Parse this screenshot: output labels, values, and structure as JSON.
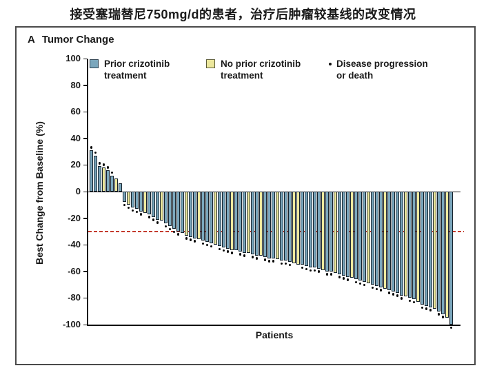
{
  "page": {
    "title": "接受塞瑞替尼750mg/d的患者，治疗后肿瘤较基线的改变情况"
  },
  "panel": {
    "letter": "A",
    "title": "Tumor Change"
  },
  "legend": {
    "prior": {
      "label": "Prior crizotinib treatment",
      "swatch_color": "#7aa6bc",
      "swatch_border": "#2b3f4e"
    },
    "no_prior": {
      "label": "No prior crizotinib treatment",
      "swatch_color": "#ece79c",
      "swatch_border": "#5c5c38"
    },
    "progression": {
      "label": "Disease progression or death",
      "marker": "black-dot",
      "marker_color": "#111111"
    }
  },
  "chart_data": {
    "type": "bar",
    "subtype": "waterfall",
    "title": "Tumor Change",
    "xlabel": "Patients",
    "ylabel": "Best Change from Baseline (%)",
    "ylim": [
      -100,
      100
    ],
    "yticks": [
      100,
      80,
      60,
      40,
      20,
      0,
      -20,
      -40,
      -60,
      -80,
      -100
    ],
    "grid": false,
    "legend_position": "top",
    "reference_line": {
      "y": -30,
      "color": "#c43a2d",
      "style": "dashed",
      "meaning": "-30% response threshold"
    },
    "series_colors": {
      "prior": "#7aa6bc",
      "no_prior": "#ece79c"
    },
    "bar_border_color": "#17242e",
    "dot_color": "#0a0a0a",
    "bars": [
      {
        "value": 31,
        "group": "prior",
        "dot": true
      },
      {
        "value": 27,
        "group": "prior",
        "dot": true
      },
      {
        "value": 19,
        "group": "prior",
        "dot": true
      },
      {
        "value": 18,
        "group": "no_prior",
        "dot": true
      },
      {
        "value": 16,
        "group": "prior",
        "dot": true
      },
      {
        "value": 12,
        "group": "prior",
        "dot": true
      },
      {
        "value": 10,
        "group": "no_prior",
        "dot": false
      },
      {
        "value": 6,
        "group": "prior",
        "dot": false
      },
      {
        "value": -8,
        "group": "prior",
        "dot": true
      },
      {
        "value": -10,
        "group": "no_prior",
        "dot": true
      },
      {
        "value": -12,
        "group": "prior",
        "dot": true
      },
      {
        "value": -13,
        "group": "prior",
        "dot": true
      },
      {
        "value": -15,
        "group": "prior",
        "dot": true
      },
      {
        "value": -16,
        "group": "no_prior",
        "dot": false
      },
      {
        "value": -17,
        "group": "prior",
        "dot": true
      },
      {
        "value": -19,
        "group": "prior",
        "dot": true
      },
      {
        "value": -21,
        "group": "prior",
        "dot": true
      },
      {
        "value": -22,
        "group": "no_prior",
        "dot": false
      },
      {
        "value": -24,
        "group": "prior",
        "dot": true
      },
      {
        "value": -26,
        "group": "prior",
        "dot": true
      },
      {
        "value": -28,
        "group": "prior",
        "dot": true
      },
      {
        "value": -30,
        "group": "prior",
        "dot": true
      },
      {
        "value": -31,
        "group": "prior",
        "dot": false
      },
      {
        "value": -33,
        "group": "no_prior",
        "dot": true
      },
      {
        "value": -34,
        "group": "prior",
        "dot": true
      },
      {
        "value": -35,
        "group": "prior",
        "dot": true
      },
      {
        "value": -36,
        "group": "no_prior",
        "dot": false
      },
      {
        "value": -37,
        "group": "prior",
        "dot": true
      },
      {
        "value": -38,
        "group": "prior",
        "dot": true
      },
      {
        "value": -39,
        "group": "prior",
        "dot": true
      },
      {
        "value": -40,
        "group": "no_prior",
        "dot": false
      },
      {
        "value": -41,
        "group": "prior",
        "dot": true
      },
      {
        "value": -42,
        "group": "prior",
        "dot": true
      },
      {
        "value": -43,
        "group": "prior",
        "dot": true
      },
      {
        "value": -44,
        "group": "no_prior",
        "dot": true
      },
      {
        "value": -44,
        "group": "prior",
        "dot": false
      },
      {
        "value": -45,
        "group": "prior",
        "dot": true
      },
      {
        "value": -46,
        "group": "prior",
        "dot": true
      },
      {
        "value": -46,
        "group": "no_prior",
        "dot": false
      },
      {
        "value": -47,
        "group": "prior",
        "dot": true
      },
      {
        "value": -48,
        "group": "prior",
        "dot": true
      },
      {
        "value": -48,
        "group": "no_prior",
        "dot": false
      },
      {
        "value": -49,
        "group": "prior",
        "dot": true
      },
      {
        "value": -50,
        "group": "prior",
        "dot": true
      },
      {
        "value": -50,
        "group": "prior",
        "dot": true
      },
      {
        "value": -51,
        "group": "no_prior",
        "dot": false
      },
      {
        "value": -52,
        "group": "prior",
        "dot": true
      },
      {
        "value": -52,
        "group": "prior",
        "dot": true
      },
      {
        "value": -53,
        "group": "prior",
        "dot": true
      },
      {
        "value": -54,
        "group": "no_prior",
        "dot": false
      },
      {
        "value": -55,
        "group": "no_prior",
        "dot": false
      },
      {
        "value": -55,
        "group": "prior",
        "dot": true
      },
      {
        "value": -56,
        "group": "prior",
        "dot": true
      },
      {
        "value": -57,
        "group": "prior",
        "dot": true
      },
      {
        "value": -57,
        "group": "prior",
        "dot": true
      },
      {
        "value": -58,
        "group": "prior",
        "dot": true
      },
      {
        "value": -59,
        "group": "no_prior",
        "dot": false
      },
      {
        "value": -60,
        "group": "prior",
        "dot": true
      },
      {
        "value": -60,
        "group": "prior",
        "dot": true
      },
      {
        "value": -61,
        "group": "no_prior",
        "dot": false
      },
      {
        "value": -62,
        "group": "prior",
        "dot": true
      },
      {
        "value": -63,
        "group": "prior",
        "dot": true
      },
      {
        "value": -64,
        "group": "prior",
        "dot": true
      },
      {
        "value": -65,
        "group": "no_prior",
        "dot": false
      },
      {
        "value": -66,
        "group": "prior",
        "dot": true
      },
      {
        "value": -67,
        "group": "prior",
        "dot": true
      },
      {
        "value": -68,
        "group": "prior",
        "dot": true
      },
      {
        "value": -69,
        "group": "no_prior",
        "dot": false
      },
      {
        "value": -70,
        "group": "prior",
        "dot": true
      },
      {
        "value": -71,
        "group": "prior",
        "dot": true
      },
      {
        "value": -72,
        "group": "prior",
        "dot": true
      },
      {
        "value": -73,
        "group": "no_prior",
        "dot": false
      },
      {
        "value": -74,
        "group": "prior",
        "dot": true
      },
      {
        "value": -75,
        "group": "prior",
        "dot": true
      },
      {
        "value": -76,
        "group": "prior",
        "dot": true
      },
      {
        "value": -78,
        "group": "prior",
        "dot": true
      },
      {
        "value": -79,
        "group": "no_prior",
        "dot": false
      },
      {
        "value": -80,
        "group": "prior",
        "dot": true
      },
      {
        "value": -81,
        "group": "prior",
        "dot": true
      },
      {
        "value": -83,
        "group": "no_prior",
        "dot": false
      },
      {
        "value": -85,
        "group": "prior",
        "dot": true
      },
      {
        "value": -86,
        "group": "prior",
        "dot": true
      },
      {
        "value": -87,
        "group": "prior",
        "dot": true
      },
      {
        "value": -88,
        "group": "no_prior",
        "dot": false
      },
      {
        "value": -90,
        "group": "prior",
        "dot": true
      },
      {
        "value": -92,
        "group": "prior",
        "dot": true
      },
      {
        "value": -95,
        "group": "no_prior",
        "dot": false
      },
      {
        "value": -100,
        "group": "prior",
        "dot": true
      }
    ]
  }
}
